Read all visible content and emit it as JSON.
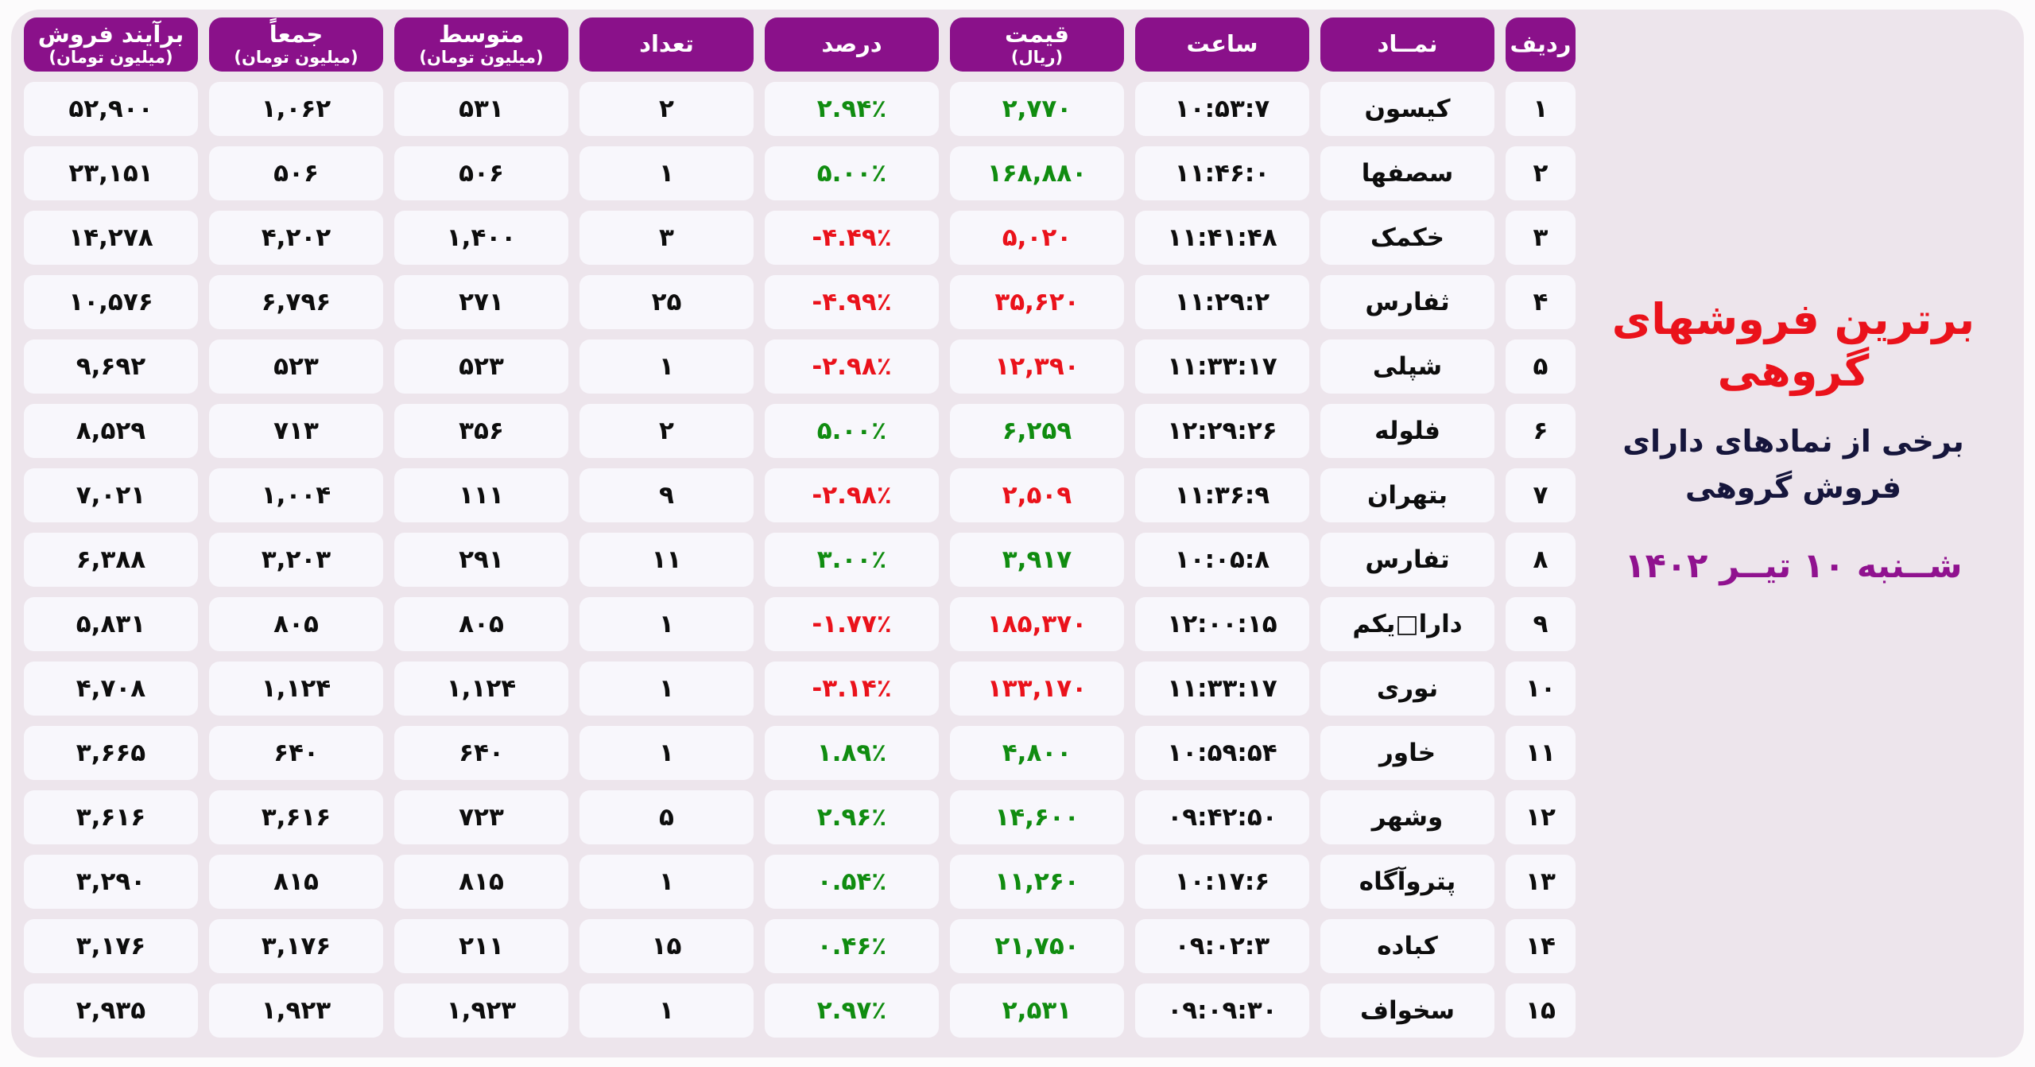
{
  "page": {
    "title": "برترین فروشهای گروهی",
    "subtitle_line1": "برخی از نمادهای دارای",
    "subtitle_line2": "فروش گروهی",
    "date": "شــنبه ۱۰ تیــر ۱۴۰۲"
  },
  "colors": {
    "header_purple": "#8a118a",
    "card_background": "#ede5ec",
    "cell_background": "#f8f7fc",
    "positive_green": "#108c10",
    "negative_red": "#ea121b",
    "title_red": "#ea121b",
    "subtitle_navy": "#16163c",
    "date_purple": "#90128f"
  },
  "chart_data": {
    "type": "table",
    "title": "برترین فروشهای گروهی",
    "columns": [
      {
        "label": "ردیف",
        "sub": ""
      },
      {
        "label": "نمــاد",
        "sub": ""
      },
      {
        "label": "ساعت",
        "sub": ""
      },
      {
        "label": "قیمت",
        "sub": "(ریال)"
      },
      {
        "label": "درصد",
        "sub": ""
      },
      {
        "label": "تعداد",
        "sub": ""
      },
      {
        "label": "متوسط",
        "sub": "(میلیون تومان)"
      },
      {
        "label": "جمعاً",
        "sub": "(میلیون تومان)"
      },
      {
        "label": "برآیند فروش",
        "sub": "(میلیون تومان)"
      }
    ],
    "rows": [
      {
        "rank": "۱",
        "symbol": "کیسون",
        "time": "۱۰:۵۳:۷",
        "price": "۲,۷۷۰",
        "price_dir": "green",
        "percent": "۲.۹۴٪",
        "percent_dir": "green",
        "count": "۲",
        "average": "۵۳۱",
        "total": "۱,۰۶۲",
        "net": "۵۲,۹۰۰"
      },
      {
        "rank": "۲",
        "symbol": "سصفها",
        "time": "۱۱:۴۶:۰",
        "price": "۱۶۸,۸۸۰",
        "price_dir": "green",
        "percent": "۵.۰۰٪",
        "percent_dir": "green",
        "count": "۱",
        "average": "۵۰۶",
        "total": "۵۰۶",
        "net": "۲۳,۱۵۱"
      },
      {
        "rank": "۳",
        "symbol": "خکمک",
        "time": "۱۱:۴۱:۴۸",
        "price": "۵,۰۲۰",
        "price_dir": "red",
        "percent": "-۴.۴۹٪",
        "percent_dir": "red",
        "count": "۳",
        "average": "۱,۴۰۰",
        "total": "۴,۲۰۲",
        "net": "۱۴,۲۷۸"
      },
      {
        "rank": "۴",
        "symbol": "ثفارس",
        "time": "۱۱:۲۹:۲",
        "price": "۳۵,۶۲۰",
        "price_dir": "red",
        "percent": "-۴.۹۹٪",
        "percent_dir": "red",
        "count": "۲۵",
        "average": "۲۷۱",
        "total": "۶,۷۹۶",
        "net": "۱۰,۵۷۶"
      },
      {
        "rank": "۵",
        "symbol": "شپلی",
        "time": "۱۱:۳۳:۱۷",
        "price": "۱۲,۳۹۰",
        "price_dir": "red",
        "percent": "-۲.۹۸٪",
        "percent_dir": "red",
        "count": "۱",
        "average": "۵۲۳",
        "total": "۵۲۳",
        "net": "۹,۶۹۲"
      },
      {
        "rank": "۶",
        "symbol": "فلوله",
        "time": "۱۲:۲۹:۲۶",
        "price": "۶,۲۵۹",
        "price_dir": "green",
        "percent": "۵.۰۰٪",
        "percent_dir": "green",
        "count": "۲",
        "average": "۳۵۶",
        "total": "۷۱۳",
        "net": "۸,۵۲۹"
      },
      {
        "rank": "۷",
        "symbol": "بتهران",
        "time": "۱۱:۳۶:۹",
        "price": "۲,۵۰۹",
        "price_dir": "red",
        "percent": "-۲.۹۸٪",
        "percent_dir": "red",
        "count": "۹",
        "average": "۱۱۱",
        "total": "۱,۰۰۴",
        "net": "۷,۰۲۱"
      },
      {
        "rank": "۸",
        "symbol": "تفارس",
        "time": "۱۰:۰۵:۸",
        "price": "۳,۹۱۷",
        "price_dir": "green",
        "percent": "۳.۰۰٪",
        "percent_dir": "green",
        "count": "۱۱",
        "average": "۲۹۱",
        "total": "۳,۲۰۳",
        "net": "۶,۳۸۸"
      },
      {
        "rank": "۹",
        "symbol": "دارا□یکم",
        "time": "۱۲:۰۰:۱۵",
        "price": "۱۸۵,۳۷۰",
        "price_dir": "red",
        "percent": "-۱.۷۷٪",
        "percent_dir": "red",
        "count": "۱",
        "average": "۸۰۵",
        "total": "۸۰۵",
        "net": "۵,۸۳۱"
      },
      {
        "rank": "۱۰",
        "symbol": "نوری",
        "time": "۱۱:۳۳:۱۷",
        "price": "۱۳۳,۱۷۰",
        "price_dir": "red",
        "percent": "-۳.۱۴٪",
        "percent_dir": "red",
        "count": "۱",
        "average": "۱,۱۲۴",
        "total": "۱,۱۲۴",
        "net": "۴,۷۰۸"
      },
      {
        "rank": "۱۱",
        "symbol": "خاور",
        "time": "۱۰:۵۹:۵۴",
        "price": "۴,۸۰۰",
        "price_dir": "green",
        "percent": "۱.۸۹٪",
        "percent_dir": "green",
        "count": "۱",
        "average": "۶۴۰",
        "total": "۶۴۰",
        "net": "۳,۶۶۵"
      },
      {
        "rank": "۱۲",
        "symbol": "وشهر",
        "time": "۰۹:۴۲:۵۰",
        "price": "۱۴,۶۰۰",
        "price_dir": "green",
        "percent": "۲.۹۶٪",
        "percent_dir": "green",
        "count": "۵",
        "average": "۷۲۳",
        "total": "۳,۶۱۶",
        "net": "۳,۶۱۶"
      },
      {
        "rank": "۱۳",
        "symbol": "پتروآگاه",
        "time": "۱۰:۱۷:۶",
        "price": "۱۱,۲۶۰",
        "price_dir": "green",
        "percent": "۰.۵۴٪",
        "percent_dir": "green",
        "count": "۱",
        "average": "۸۱۵",
        "total": "۸۱۵",
        "net": "۳,۲۹۰"
      },
      {
        "rank": "۱۴",
        "symbol": "کباده",
        "time": "۰۹:۰۲:۳",
        "price": "۲۱,۷۵۰",
        "price_dir": "green",
        "percent": "۰.۴۶٪",
        "percent_dir": "green",
        "count": "۱۵",
        "average": "۲۱۱",
        "total": "۳,۱۷۶",
        "net": "۳,۱۷۶"
      },
      {
        "rank": "۱۵",
        "symbol": "سخواف",
        "time": "۰۹:۰۹:۳۰",
        "price": "۲,۵۳۱",
        "price_dir": "green",
        "percent": "۲.۹۷٪",
        "percent_dir": "green",
        "count": "۱",
        "average": "۱,۹۲۳",
        "total": "۱,۹۲۳",
        "net": "۲,۹۳۵"
      }
    ]
  }
}
